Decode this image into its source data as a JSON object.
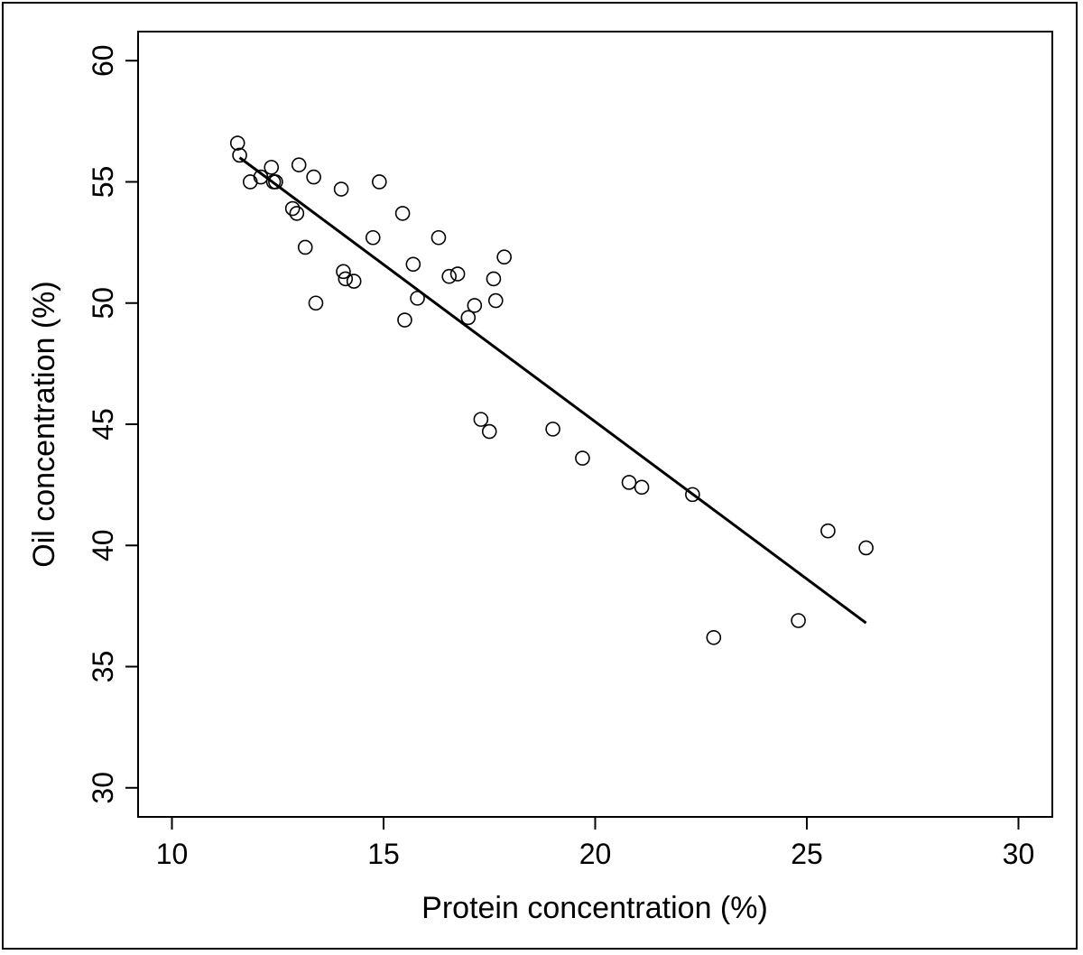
{
  "chart_data": {
    "type": "scatter",
    "xlabel": "Protein concentration (%)",
    "ylabel": "Oil concentration (%)",
    "xlim": [
      9.2,
      30.8
    ],
    "ylim": [
      28.8,
      61.2
    ],
    "xticks": [
      10,
      15,
      20,
      25,
      30
    ],
    "yticks": [
      30,
      35,
      40,
      45,
      50,
      55,
      60
    ],
    "x_tick_labels": [
      "10",
      "15",
      "20",
      "25",
      "30"
    ],
    "y_tick_labels": [
      "30",
      "35",
      "40",
      "45",
      "50",
      "55",
      "60"
    ],
    "grid": false,
    "legend": "none",
    "series": [
      {
        "marker": "open-circle",
        "points": [
          [
            11.55,
            56.6
          ],
          [
            11.6,
            56.1
          ],
          [
            11.85,
            55.0
          ],
          [
            12.1,
            55.2
          ],
          [
            12.35,
            55.6
          ],
          [
            12.4,
            55.0
          ],
          [
            12.45,
            55.0
          ],
          [
            12.85,
            53.9
          ],
          [
            12.95,
            53.7
          ],
          [
            13.0,
            55.7
          ],
          [
            13.15,
            52.3
          ],
          [
            13.35,
            55.2
          ],
          [
            13.4,
            50.0
          ],
          [
            14.0,
            54.7
          ],
          [
            14.05,
            51.3
          ],
          [
            14.1,
            51.0
          ],
          [
            14.3,
            50.9
          ],
          [
            14.75,
            52.7
          ],
          [
            14.9,
            55.0
          ],
          [
            15.45,
            53.7
          ],
          [
            15.5,
            49.3
          ],
          [
            15.7,
            51.6
          ],
          [
            15.8,
            50.2
          ],
          [
            16.3,
            52.7
          ],
          [
            16.55,
            51.1
          ],
          [
            16.75,
            51.2
          ],
          [
            17.0,
            49.4
          ],
          [
            17.15,
            49.9
          ],
          [
            17.3,
            45.2
          ],
          [
            17.5,
            44.7
          ],
          [
            17.6,
            51.0
          ],
          [
            17.65,
            50.1
          ],
          [
            17.85,
            51.9
          ],
          [
            19.0,
            44.8
          ],
          [
            19.7,
            43.6
          ],
          [
            20.8,
            42.6
          ],
          [
            21.1,
            42.4
          ],
          [
            22.3,
            42.1
          ],
          [
            22.8,
            36.2
          ],
          [
            24.8,
            36.9
          ],
          [
            25.5,
            40.6
          ],
          [
            26.4,
            39.9
          ]
        ]
      }
    ],
    "fit_line": {
      "type": "linear",
      "x": [
        11.6,
        26.4
      ],
      "y": [
        56.0,
        36.8
      ]
    }
  },
  "colors": {
    "ink": "#000000",
    "background": "#ffffff"
  }
}
